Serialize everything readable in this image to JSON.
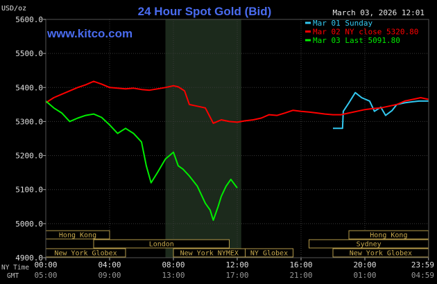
{
  "chart_data": {
    "type": "line",
    "title": "24 Hour Spot Gold (Bid)",
    "site": "www.kitco.com",
    "timestamp": "March 03, 2026 12:01",
    "y_unit_label": "USD/oz",
    "ylim": [
      4900,
      5600
    ],
    "y_ticks": [
      "5600.0",
      "5500.0",
      "5400.0",
      "5300.0",
      "5200.0",
      "5100.0",
      "5000.0",
      "4900.0"
    ],
    "x_ticks_ny": [
      "00:00",
      "04:00",
      "08:00",
      "12:00",
      "16:00",
      "20:00",
      "23:59"
    ],
    "x_ticks_gmt": [
      "05:00",
      "09:00",
      "13:00",
      "17:00",
      "21:00",
      "01:00",
      "04:59"
    ],
    "x_label_ny": "NY Time",
    "x_label_gmt": "GMT",
    "series": [
      {
        "name": "Mar 01 Sunday",
        "color": "#33c8f0",
        "x": [
          18.0,
          18.6,
          18.65,
          19.0,
          19.4,
          19.8,
          20.3,
          20.6,
          21.0,
          21.3,
          21.7,
          22.0,
          22.5,
          23.0,
          23.4,
          23.99
        ],
        "y": [
          5280,
          5280,
          5330,
          5355,
          5385,
          5370,
          5360,
          5330,
          5342,
          5318,
          5332,
          5350,
          5355,
          5358,
          5360,
          5360
        ]
      },
      {
        "name": "Mar 02 NY close 5320.80",
        "color": "#ff0000",
        "x": [
          0.0,
          0.5,
          1.0,
          1.5,
          2.0,
          2.5,
          3.0,
          3.5,
          4.0,
          4.5,
          5.0,
          5.5,
          6.0,
          6.5,
          7.0,
          7.5,
          8.0,
          8.3,
          8.7,
          9.0,
          9.5,
          10.0,
          10.5,
          11.0,
          11.5,
          12.0,
          12.5,
          13.0,
          13.5,
          14.0,
          14.5,
          15.0,
          15.5,
          16.0,
          16.5,
          17.0,
          17.5,
          18.0,
          18.5,
          19.0,
          19.5,
          20.0,
          20.5,
          21.0,
          21.5,
          22.0,
          22.5,
          23.0,
          23.5,
          23.99
        ],
        "y": [
          5355,
          5370,
          5380,
          5390,
          5400,
          5408,
          5418,
          5410,
          5400,
          5398,
          5396,
          5398,
          5394,
          5392,
          5396,
          5400,
          5405,
          5402,
          5390,
          5350,
          5345,
          5340,
          5295,
          5305,
          5300,
          5298,
          5302,
          5305,
          5310,
          5320,
          5318,
          5325,
          5333,
          5330,
          5328,
          5325,
          5322,
          5320,
          5320,
          5325,
          5330,
          5335,
          5338,
          5340,
          5345,
          5350,
          5360,
          5365,
          5370,
          5365
        ]
      },
      {
        "name": "Mar 03 Last 5091.80",
        "color": "#00ee00",
        "x": [
          0.0,
          0.5,
          1.0,
          1.5,
          2.0,
          2.5,
          3.0,
          3.5,
          4.0,
          4.5,
          5.0,
          5.5,
          6.0,
          6.3,
          6.6,
          7.0,
          7.5,
          8.0,
          8.3,
          8.6,
          9.0,
          9.5,
          10.0,
          10.3,
          10.5,
          10.8,
          11.0,
          11.3,
          11.6,
          12.0
        ],
        "y": [
          5360,
          5340,
          5325,
          5300,
          5310,
          5318,
          5322,
          5312,
          5290,
          5265,
          5280,
          5265,
          5240,
          5170,
          5120,
          5150,
          5190,
          5210,
          5170,
          5160,
          5140,
          5110,
          5060,
          5040,
          5010,
          5050,
          5080,
          5110,
          5130,
          5105
        ]
      }
    ],
    "shaded_region": {
      "x_start": 7.5,
      "x_end": 12.25
    },
    "market_sessions": [
      {
        "name": "Hong Kong",
        "start": 0.0,
        "end": 4.0,
        "row": 0
      },
      {
        "name": "London",
        "start": 3.0,
        "end": 11.5,
        "row": 1
      },
      {
        "name": "New York Globex",
        "start": 0.0,
        "end": 5.0,
        "row": 2
      },
      {
        "name": "New York NYMEX",
        "start": 8.0,
        "end": 12.5,
        "row": 2
      },
      {
        "name": "NY Globex",
        "start": 12.5,
        "end": 15.5,
        "row": 2
      },
      {
        "name": "Hong Kong",
        "start": 19.0,
        "end": 23.99,
        "row": 0
      },
      {
        "name": "Sydney",
        "start": 16.5,
        "end": 23.99,
        "row": 1
      },
      {
        "name": "New York Globex",
        "start": 18.0,
        "end": 23.99,
        "row": 2
      }
    ],
    "grid": true,
    "legend_position": "top-right"
  }
}
